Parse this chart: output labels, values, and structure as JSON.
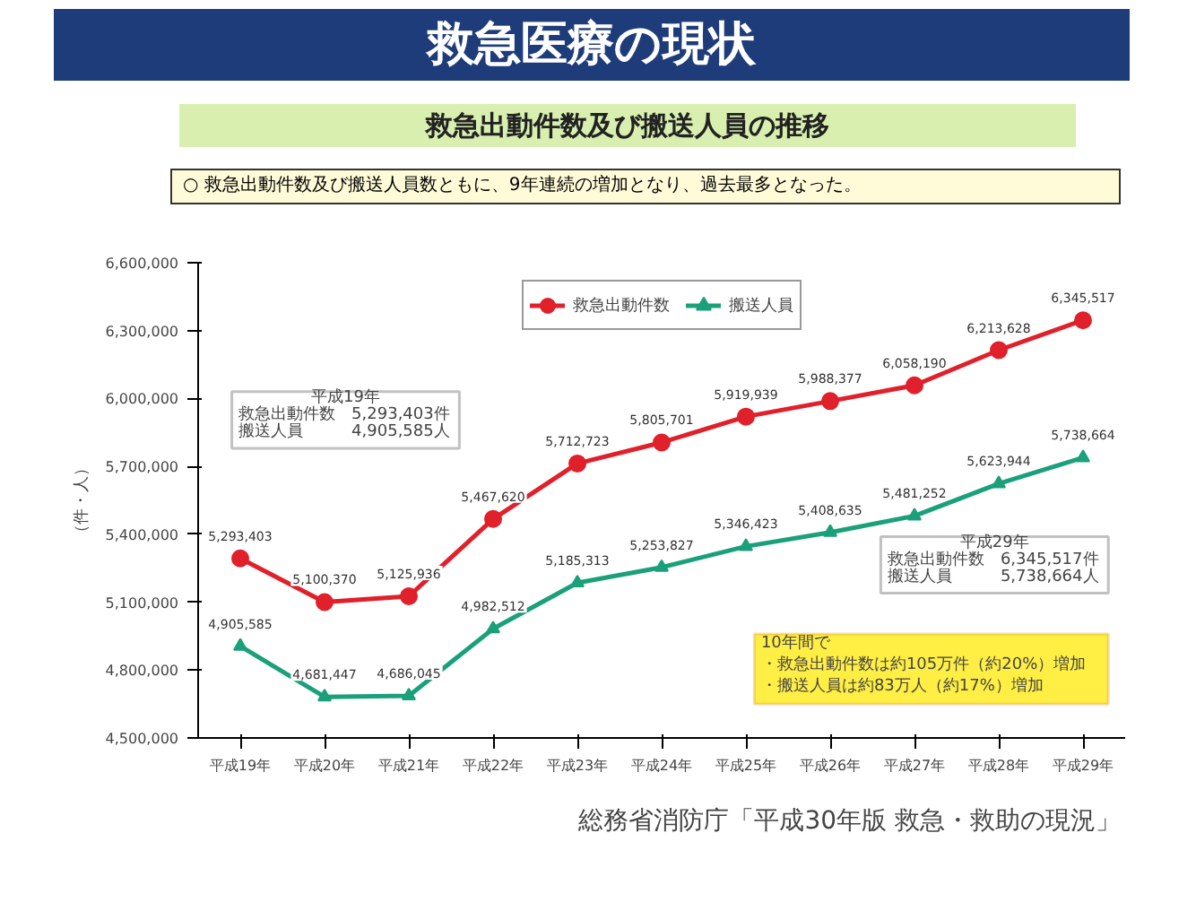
{
  "chart_data": {
    "type": "line",
    "title": "救急医療の現状",
    "subtitle": "救急出動件数及び搬送人員の推移",
    "ylabel": "（件・人）",
    "categories": [
      "平成19年",
      "平成20年",
      "平成21年",
      "平成22年",
      "平成23年",
      "平成24年",
      "平成25年",
      "平成26年",
      "平成27年",
      "平成28年",
      "平成29年"
    ],
    "series": [
      {
        "name": "救急出動件数",
        "color": "#e0202a",
        "marker": "circle",
        "values": [
          5293403,
          5100370,
          5125936,
          5467620,
          5712723,
          5805701,
          5919939,
          5988377,
          6058190,
          6213628,
          6345517
        ],
        "value_labels": [
          "5,293,403",
          "5,100,370",
          "5,125,936",
          "5,467,620",
          "5,712,723",
          "5,805,701",
          "5,919,939",
          "5,988,377",
          "6,058,190",
          "6,213,628",
          "6,345,517"
        ]
      },
      {
        "name": "搬送人員",
        "color": "#1aa07a",
        "marker": "triangle",
        "values": [
          4905585,
          4681447,
          4686045,
          4982512,
          5185313,
          5253827,
          5346423,
          5408635,
          5481252,
          5623944,
          5738664
        ],
        "value_labels": [
          "4,905,585",
          "4,681,447",
          "4,686,045",
          "4,982,512",
          "5,185,313",
          "5,253,827",
          "5,346,423",
          "5,408,635",
          "5,481,252",
          "5,623,944",
          "5,738,664"
        ]
      }
    ],
    "ylim": [
      4500000,
      6600000
    ],
    "yticks": [
      {
        "value": 4500000,
        "label": "4,500,000"
      },
      {
        "value": 4800000,
        "label": "4,800,000"
      },
      {
        "value": 5100000,
        "label": "5,100,000"
      },
      {
        "value": 5400000,
        "label": "5,400,000"
      },
      {
        "value": 5700000,
        "label": "5,700,000"
      },
      {
        "value": 6000000,
        "label": "6,000,000"
      },
      {
        "value": 6300000,
        "label": "6,300,000"
      },
      {
        "value": 6600000,
        "label": "6,600,000"
      }
    ],
    "grid": false,
    "legend": "top",
    "line_style": "solid",
    "annotations": [
      "○ 救急出動件数及び搬送人員数ともに、9年連続の増加となり、過去最多となった。",
      "平成19年",
      "救急出動件数　5,293,403件",
      "搬送人員　　　4,905,585人",
      "平成29年",
      "救急出動件数　6,345,517件",
      "搬送人員　　　5,738,664人",
      "10年間で",
      "・救急出動件数は約105万件（約20%）増加",
      "・搬送人員は約83万人（約17%）増加",
      "総務省消防庁「平成30年版 救急・救助の現況」"
    ]
  }
}
